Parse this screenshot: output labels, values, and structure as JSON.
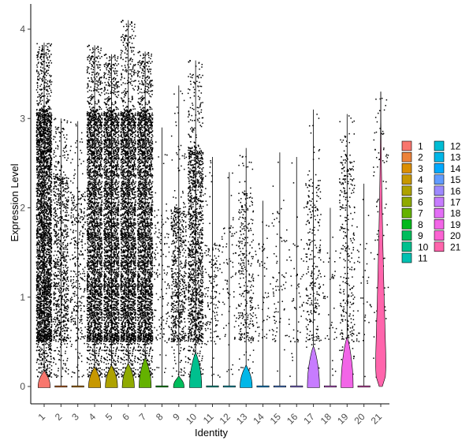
{
  "chart_data": {
    "type": "violin",
    "title": "",
    "xlabel": "Identity",
    "ylabel": "Expression Level",
    "ylim": [
      -0.2,
      4.3
    ],
    "yticks": [
      0,
      1,
      2,
      3,
      4
    ],
    "categories": [
      "1",
      "2",
      "3",
      "4",
      "5",
      "6",
      "7",
      "8",
      "9",
      "10",
      "11",
      "12",
      "13",
      "14",
      "15",
      "16",
      "17",
      "18",
      "19",
      "20",
      "21"
    ],
    "series": [
      {
        "name": "1",
        "color": "#F8766D",
        "max": 3.85,
        "violin_height": 0.18,
        "violin_width": 0.8,
        "points": 3200,
        "dense_to": 3.1
      },
      {
        "name": "2",
        "color": "#EC8239",
        "max": 3.0,
        "violin_height": 0.0,
        "violin_width": 0.0,
        "points": 900,
        "dense_to": 2.4
      },
      {
        "name": "3",
        "color": "#DB8E00",
        "max": 2.97,
        "violin_height": 0.0,
        "violin_width": 0.0,
        "points": 350,
        "dense_to": 2.2
      },
      {
        "name": "4",
        "color": "#C79800",
        "max": 3.82,
        "violin_height": 0.22,
        "violin_width": 0.8,
        "points": 2600,
        "dense_to": 3.1
      },
      {
        "name": "5",
        "color": "#AEA200",
        "max": 3.72,
        "violin_height": 0.24,
        "violin_width": 0.8,
        "points": 2600,
        "dense_to": 3.1
      },
      {
        "name": "6",
        "color": "#8FAA00",
        "max": 4.1,
        "violin_height": 0.26,
        "violin_width": 0.8,
        "points": 2700,
        "dense_to": 3.1
      },
      {
        "name": "7",
        "color": "#64B200",
        "max": 3.75,
        "violin_height": 0.32,
        "violin_width": 0.8,
        "points": 2700,
        "dense_to": 3.1
      },
      {
        "name": "8",
        "color": "#00B81B",
        "max": 2.9,
        "violin_height": 0.0,
        "violin_width": 0.0,
        "points": 140,
        "dense_to": 2.0
      },
      {
        "name": "9",
        "color": "#00BD5C",
        "max": 3.37,
        "violin_height": 0.12,
        "violin_width": 0.7,
        "points": 650,
        "dense_to": 2.0
      },
      {
        "name": "10",
        "color": "#00C08E",
        "max": 3.65,
        "violin_height": 0.38,
        "violin_width": 0.8,
        "points": 1400,
        "dense_to": 2.7
      },
      {
        "name": "11",
        "color": "#00C1B2",
        "max": 2.57,
        "violin_height": 0.0,
        "violin_width": 0.0,
        "points": 160,
        "dense_to": 1.6
      },
      {
        "name": "12",
        "color": "#00BDD4",
        "max": 2.4,
        "violin_height": 0.0,
        "violin_width": 0.0,
        "points": 80,
        "dense_to": 1.8
      },
      {
        "name": "13",
        "color": "#00B7E8",
        "max": 2.67,
        "violin_height": 0.24,
        "violin_width": 0.8,
        "points": 320,
        "dense_to": 2.2
      },
      {
        "name": "14",
        "color": "#00A9FF",
        "max": 2.08,
        "violin_height": 0.0,
        "violin_width": 0.0,
        "points": 60,
        "dense_to": 1.6
      },
      {
        "name": "15",
        "color": "#619CFF",
        "max": 2.62,
        "violin_height": 0.0,
        "violin_width": 0.0,
        "points": 80,
        "dense_to": 2.0
      },
      {
        "name": "16",
        "color": "#9E89FF",
        "max": 2.57,
        "violin_height": 0.0,
        "violin_width": 0.0,
        "points": 60,
        "dense_to": 1.6
      },
      {
        "name": "17",
        "color": "#C77CFF",
        "max": 3.1,
        "violin_height": 0.45,
        "violin_width": 0.8,
        "points": 280,
        "dense_to": 2.3
      },
      {
        "name": "18",
        "color": "#E36EF6",
        "max": 2.0,
        "violin_height": 0.0,
        "violin_width": 0.0,
        "points": 40,
        "dense_to": 1.5
      },
      {
        "name": "19",
        "color": "#F265E7",
        "max": 3.05,
        "violin_height": 0.55,
        "violin_width": 0.8,
        "points": 320,
        "dense_to": 2.6
      },
      {
        "name": "20",
        "color": "#FC62D3",
        "max": 2.27,
        "violin_height": 0.0,
        "violin_width": 0.0,
        "points": 40,
        "dense_to": 1.6
      },
      {
        "name": "21",
        "color": "#FF65AC",
        "max": 3.3,
        "violin_height": 3.3,
        "violin_width": 0.8,
        "points": 90,
        "dense_to": 3.0
      }
    ],
    "legend": {
      "position": "right",
      "columns": 2
    },
    "grid": false
  }
}
